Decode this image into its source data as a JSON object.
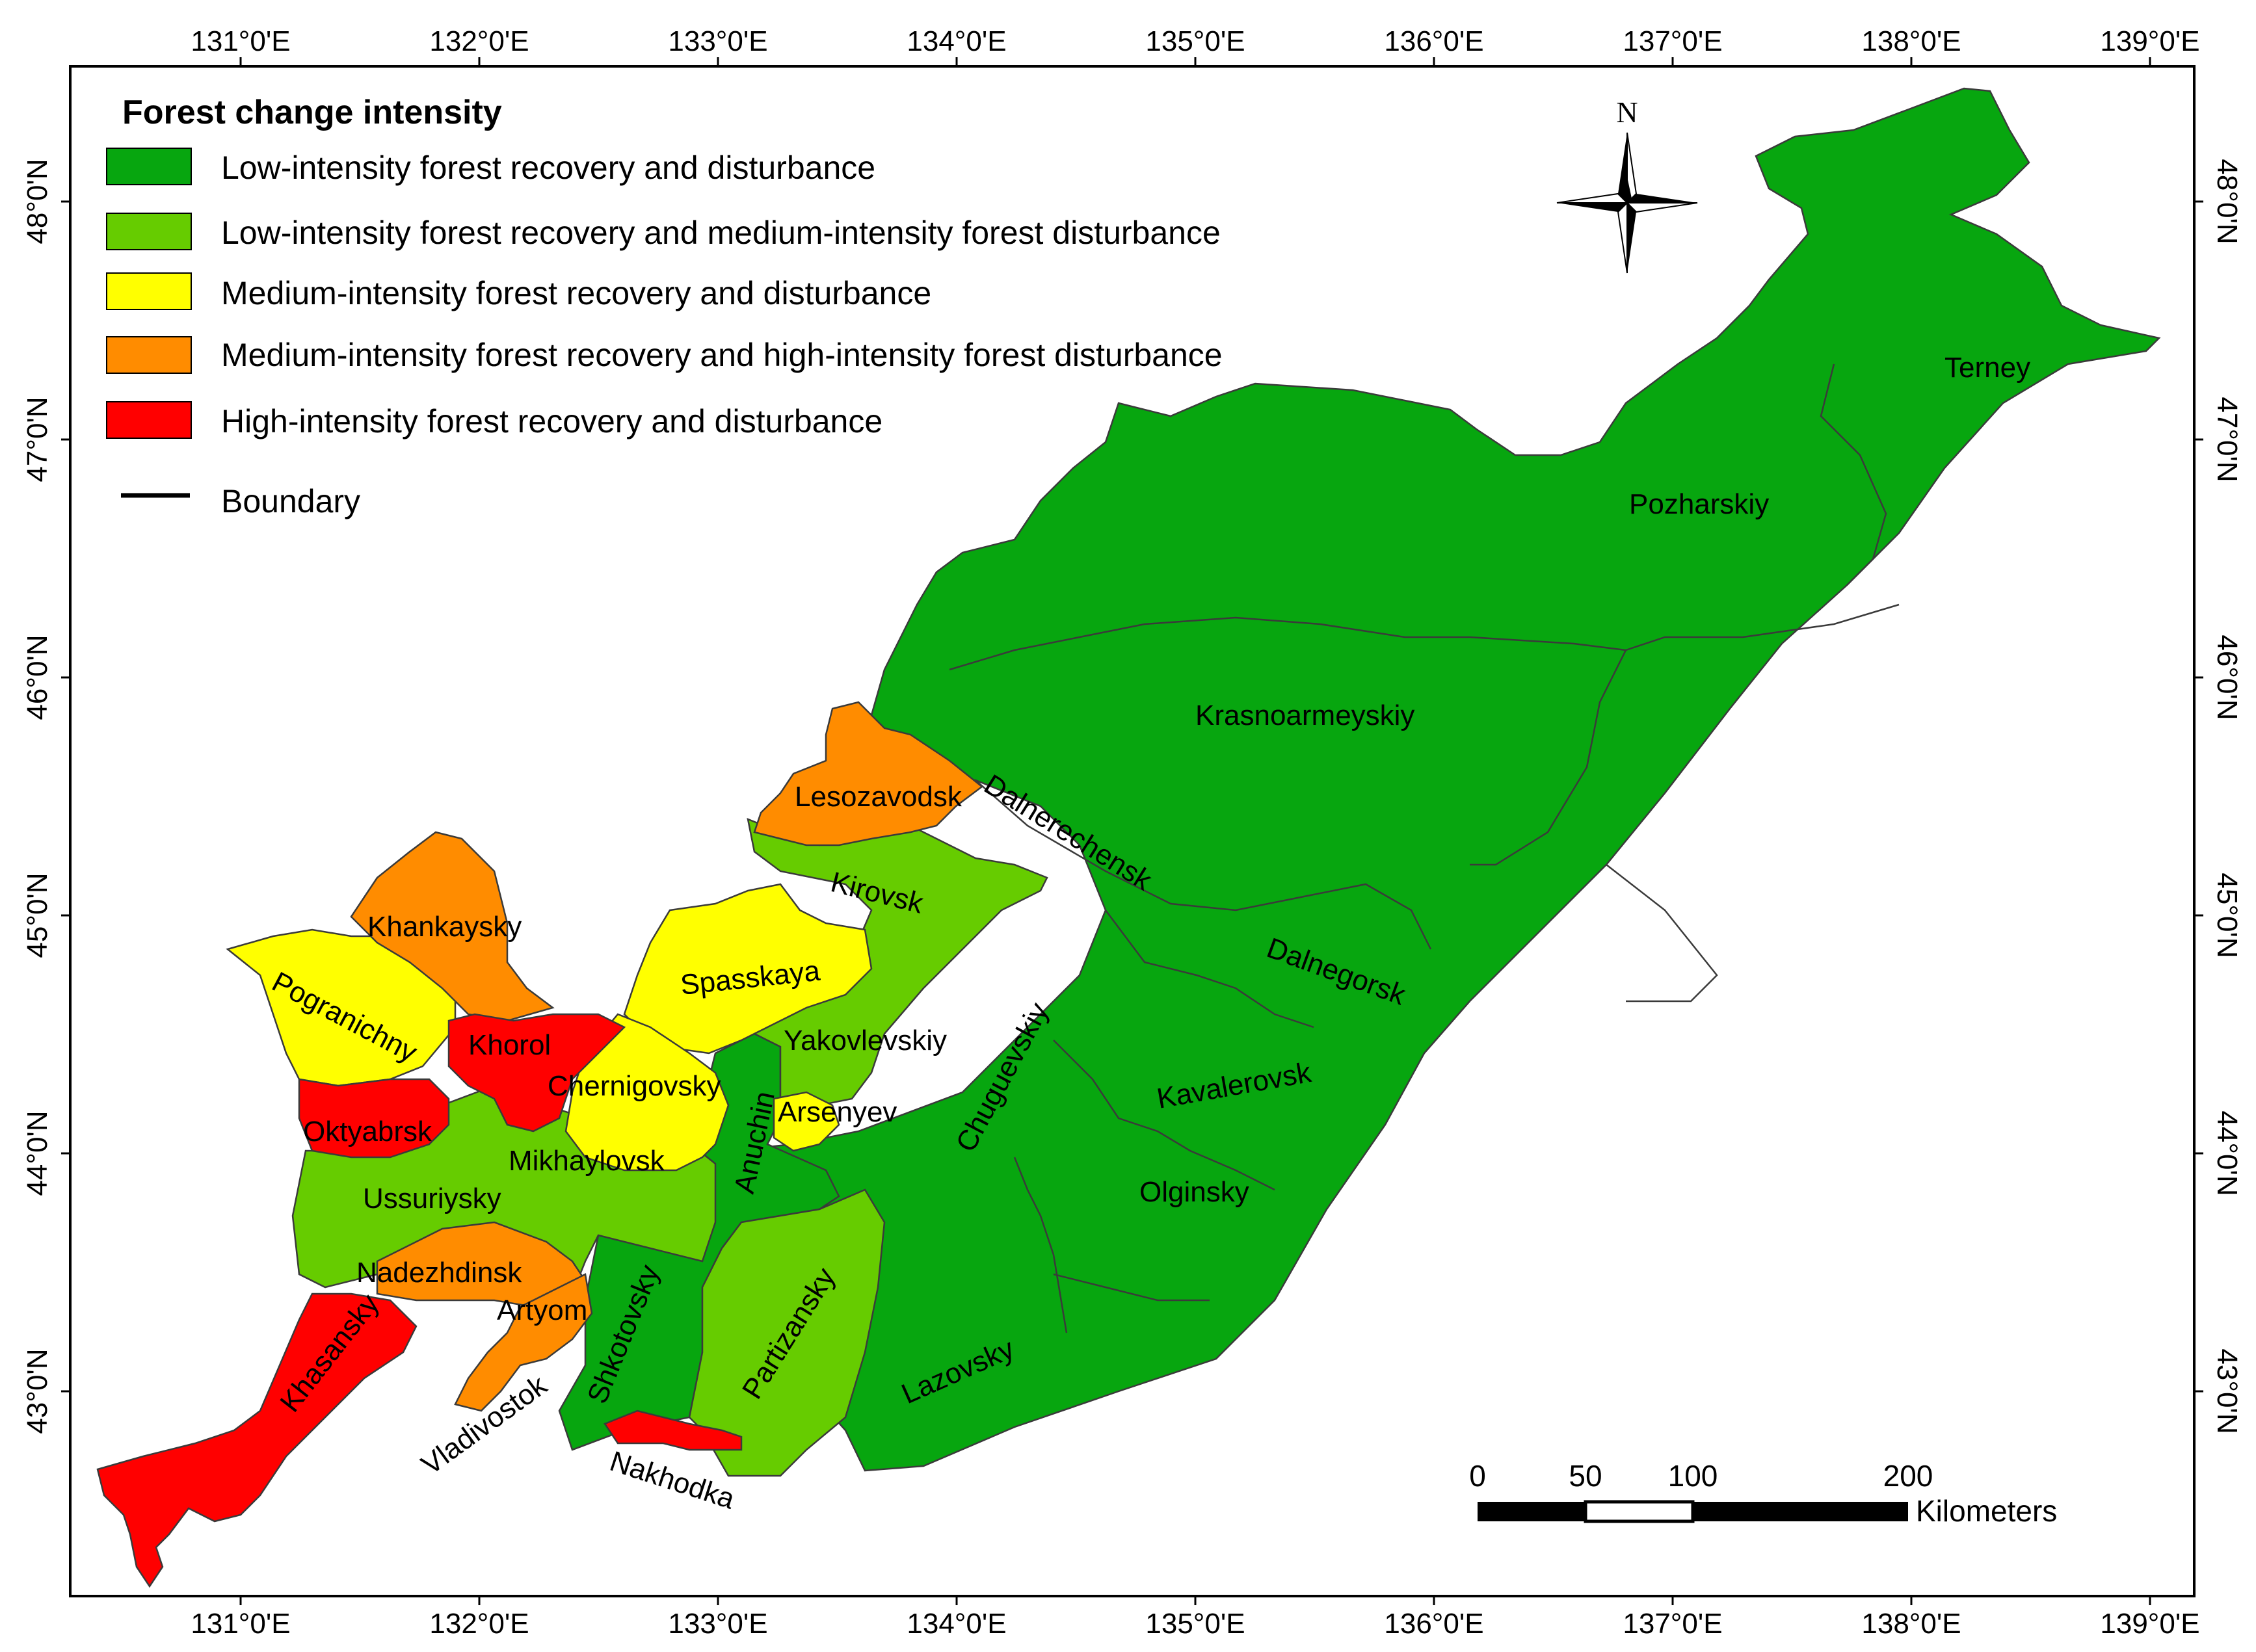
{
  "colors": {
    "low": "#07a60f",
    "low_recovery_medium_disturbance": "#66cc00",
    "medium": "#ffff00",
    "medium_recovery_high_disturbance": "#ff8c00",
    "high": "#ff0000",
    "boundary": "#000000"
  },
  "legend": {
    "title": "Forest change intensity",
    "items": [
      {
        "label": "Low-intensity forest recovery and disturbance",
        "color": "#07a60f"
      },
      {
        "label": "Low-intensity forest recovery and medium-intensity forest disturbance",
        "color": "#66cc00"
      },
      {
        "label": "Medium-intensity forest recovery and disturbance",
        "color": "#ffff00"
      },
      {
        "label": "Medium-intensity forest recovery and high-intensity forest disturbance",
        "color": "#ff8c00"
      },
      {
        "label": "High-intensity forest recovery and disturbance",
        "color": "#ff0000"
      }
    ],
    "boundary_label": "Boundary"
  },
  "axes": {
    "longitude_labels": [
      "131°0'E",
      "132°0'E",
      "133°0'E",
      "134°0'E",
      "135°0'E",
      "136°0'E",
      "137°0'E",
      "138°0'E",
      "139°0'E"
    ],
    "latitude_labels": [
      "48°0'N",
      "47°0'N",
      "46°0'N",
      "45°0'N",
      "44°0'N",
      "43°0'N"
    ]
  },
  "north_arrow": {
    "label": "N",
    "icon": "compass-rose-icon"
  },
  "scale_bar": {
    "ticks": [
      "0",
      "50",
      "100",
      "200"
    ],
    "unit": "Kilometers"
  },
  "regions": {
    "terney": "Terney",
    "pozharskiy": "Pozharskiy",
    "krasnoarmeyskiy": "Krasnoarmeyskiy",
    "dalnerechensk": "Dalnerechensk",
    "lesozavodsk": "Lesozavodsk",
    "kirovsk": "Kirovsk",
    "dalnegorsk": "Dalnegorsk",
    "khankaysky": "Khankaysky",
    "spasskaya": "Spasskaya",
    "pogranichny": "Pogranichny",
    "khorol": "Khorol",
    "yakovlevskiy": "Yakovlevskiy",
    "chuguevskiy": "Chuguevskiy",
    "kavalerovsk": "Kavalerovsk",
    "chernigovsky": "Chernigovsky",
    "arsenyev": "Arsenyev",
    "oktyabrsk": "Oktyabrsk",
    "anuchin": "Anuchin",
    "mikhaylovsk": "Mikhaylovsk",
    "olginsky": "Olginsky",
    "ussuriysky": "Ussuriysky",
    "nadezhdinsk": "Nadezhdinsk",
    "artyom": "Artyom",
    "shkotovsky": "Shkotovsky",
    "partizansky": "Partizansky",
    "khasansky": "Khasansky",
    "lazovsky": "Lazovsky",
    "vladivostok": "Vladivostok",
    "nakhodka": "Nakhodka"
  }
}
